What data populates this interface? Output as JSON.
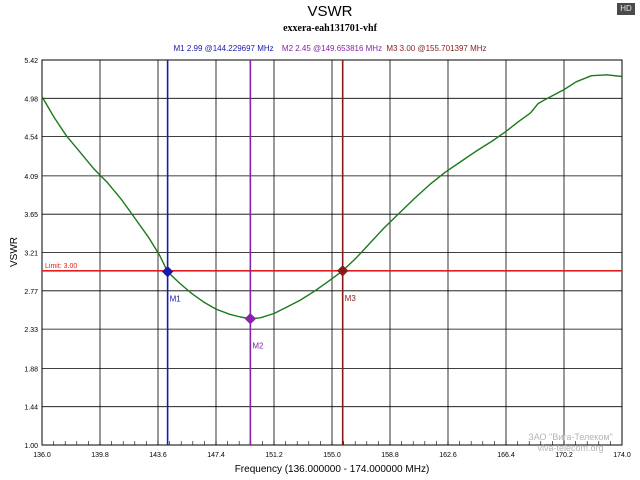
{
  "badge": "HD",
  "watermark": {
    "line1": "ЗАО \"Вига-Телеком\"",
    "line2": "viva-telecom.org"
  },
  "chart_data": {
    "type": "line",
    "title": "VSWR",
    "subtitle": "exxera-eah131701-vhf",
    "xlabel": "Frequency (136.000000 - 174.000000 MHz)",
    "ylabel": "VSWR",
    "xlim": [
      136.0,
      174.0
    ],
    "ylim": [
      1.0,
      5.42
    ],
    "x_ticks": [
      "136.0",
      "139.8",
      "143.6",
      "147.4",
      "151.2",
      "155.0",
      "158.8",
      "162.6",
      "166.4",
      "170.2",
      "174.0"
    ],
    "y_ticks": [
      "5.42",
      "4.98",
      "4.54",
      "4.09",
      "3.65",
      "3.21",
      "2.77",
      "2.33",
      "1.88",
      "1.44",
      "1.00"
    ],
    "grid": true,
    "limit": {
      "value": 3.0,
      "label": "Limit: 3.00",
      "color": "#e02020"
    },
    "markers_header": [
      {
        "text": "M1  2.99 @144.229697 MHz",
        "color": "#1a1aaa"
      },
      {
        "text": "M2  2.45 @149.653816 MHz",
        "color": "#8822aa"
      },
      {
        "text": "M3  3.00 @155.701397 MHz",
        "color": "#8a1a1a"
      }
    ],
    "markers": [
      {
        "name": "M1",
        "x": 144.23,
        "y": 2.99,
        "color": "#1a1aaa"
      },
      {
        "name": "M2",
        "x": 149.65,
        "y": 2.45,
        "color": "#8822aa"
      },
      {
        "name": "M3",
        "x": 155.7,
        "y": 3.0,
        "color": "#8a1a1a"
      }
    ],
    "series": [
      {
        "color": "#1a7a1a",
        "x": [
          136.0,
          136.8,
          137.6,
          138.5,
          139.4,
          140.3,
          141.2,
          142.1,
          143.0,
          143.7,
          144.23,
          145.0,
          145.8,
          146.6,
          147.4,
          148.3,
          149.0,
          149.65,
          150.3,
          151.2,
          152.0,
          152.9,
          153.8,
          154.7,
          155.7,
          156.6,
          157.5,
          158.4,
          159.4,
          160.4,
          161.4,
          162.4,
          163.5,
          164.5,
          165.5,
          166.4,
          167.2,
          168.0,
          168.5,
          169.0,
          170.2,
          171.0,
          172.0,
          173.0,
          174.0
        ],
        "y": [
          5.0,
          4.76,
          4.55,
          4.36,
          4.17,
          4.01,
          3.82,
          3.6,
          3.38,
          3.18,
          2.99,
          2.86,
          2.74,
          2.64,
          2.56,
          2.5,
          2.47,
          2.45,
          2.46,
          2.51,
          2.58,
          2.66,
          2.76,
          2.87,
          3.0,
          3.15,
          3.32,
          3.49,
          3.66,
          3.83,
          3.99,
          4.13,
          4.26,
          4.38,
          4.49,
          4.6,
          4.71,
          4.81,
          4.92,
          4.97,
          5.08,
          5.17,
          5.24,
          5.25,
          5.23
        ]
      }
    ]
  }
}
